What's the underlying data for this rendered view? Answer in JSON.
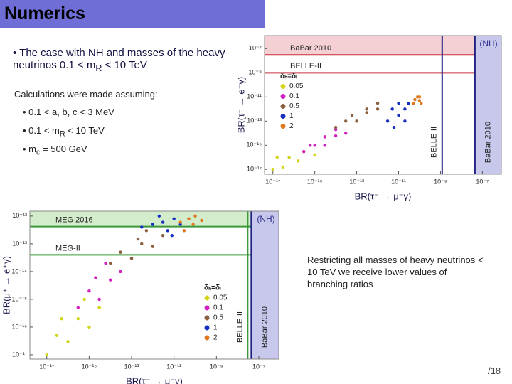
{
  "header": {
    "title": "Numerics"
  },
  "lead": [
    "The case with NH and masses of the heavy neutrinos 0.1 < m",
    "R",
    " < 10 TeV"
  ],
  "calc_title": "Calculations were made assuming:",
  "assumptions": [
    [
      "0.1 < a, b, c < 3 MeV"
    ],
    [
      "0.1 < m",
      "R",
      " < 10 TeV"
    ],
    [
      "m",
      "c",
      " = 500 GeV"
    ]
  ],
  "note": "Restricting all masses of heavy neutrinos < 10 TeV we receive lower values of branching ratios",
  "page": "/18",
  "chart_data": [
    {
      "type": "scatter",
      "xscale": "log",
      "yscale": "log",
      "x_label": "BR(τ⁻ → μ⁻γ)",
      "y_label": "BR(τ⁻ → e⁻γ)",
      "annotation": "(NH)",
      "legend_title": "δₕ=δₗ",
      "legend": "center-left",
      "xlim": [
        4e-18,
        8e-07
      ],
      "ylim": [
        4e-18,
        1.2e-06
      ],
      "xticks": [
        {
          "value": 1e-17,
          "label": "10⁻¹⁷"
        },
        {
          "value": 1e-15,
          "label": "10⁻¹⁵"
        },
        {
          "value": 1e-13,
          "label": "10⁻¹³"
        },
        {
          "value": 1e-11,
          "label": "10⁻¹¹"
        },
        {
          "value": 1e-09,
          "label": "10⁻⁹"
        },
        {
          "value": 1e-07,
          "label": "10⁻⁷"
        }
      ],
      "yticks": [
        {
          "value": 1e-17,
          "label": "10⁻¹⁷"
        },
        {
          "value": 1e-15,
          "label": "10⁻¹⁵"
        },
        {
          "value": 1e-13,
          "label": "10⁻¹³"
        },
        {
          "value": 1e-11,
          "label": "10⁻¹¹"
        },
        {
          "value": 1e-09,
          "label": "10⁻⁹"
        },
        {
          "value": 1e-07,
          "label": "10⁻⁷"
        }
      ],
      "limits": [
        {
          "label": "BaBar 2010",
          "axis": "y",
          "value": 3e-08,
          "color": "#c8303c",
          "band": true,
          "band_color": "#f4d0d4"
        },
        {
          "label": "BELLE-II",
          "axis": "y",
          "value": 1e-09,
          "color": "#c8303c",
          "band": false
        },
        {
          "label": "BELLE-II",
          "axis": "x",
          "value": 1.2e-09,
          "color": "#202080",
          "band": false
        },
        {
          "label": "BaBar 2010",
          "axis": "x",
          "value": 4.4e-08,
          "color": "#202080",
          "band": true,
          "band_color": "#c8c8ec"
        }
      ],
      "series": [
        {
          "name": "0.05",
          "color": "#d4d41a",
          "x": [
            1e-17,
            3e-17,
            6e-17,
            1.6e-16,
            3e-16,
            1e-15,
            1.6e-17,
            6e-16
          ],
          "values": [
            1e-17,
            1.6e-17,
            1e-16,
            5e-17,
            3e-16,
            1.6e-16,
            1e-16,
            1e-15
          ]
        },
        {
          "name": "0.1",
          "color": "#d020c0",
          "x": [
            3e-16,
            1e-15,
            3e-15,
            1e-14,
            3e-15,
            3e-14,
            6e-16,
            1e-14
          ],
          "values": [
            3e-16,
            1e-15,
            1e-15,
            6e-15,
            5e-15,
            1e-14,
            1e-15,
            2e-14
          ]
        },
        {
          "name": "0.5",
          "color": "#8a6040",
          "x": [
            1e-14,
            3e-14,
            1e-13,
            3e-13,
            1e-12,
            3e-13,
            6e-14,
            1e-12
          ],
          "values": [
            3e-14,
            1e-13,
            1e-13,
            5e-13,
            1e-12,
            1e-12,
            3e-13,
            3e-12
          ]
        },
        {
          "name": "1",
          "color": "#1830c0",
          "x": [
            3e-12,
            1e-11,
            2e-11,
            5e-12,
            1e-11,
            3e-11,
            2e-11,
            6e-12
          ],
          "values": [
            1e-13,
            3e-13,
            1e-12,
            1e-12,
            3e-12,
            3e-12,
            1e-13,
            3e-14
          ]
        },
        {
          "name": "2",
          "color": "#e07820",
          "x": [
            5e-11,
            1e-10,
            8e-11,
            1.2e-10,
            6e-11,
            1e-10
          ],
          "values": [
            3e-12,
            5e-12,
            1e-11,
            3e-12,
            6e-12,
            1e-11
          ]
        }
      ]
    },
    {
      "type": "scatter",
      "xscale": "log",
      "yscale": "log",
      "x_label": "BR(τ⁻ → μ⁻γ)",
      "y_label": "BR(μ⁺ → e⁺γ)",
      "annotation": "(NH)",
      "legend_title": "δₕ=δₗ",
      "legend": "lower-right",
      "xlim": [
        1.6e-18,
        8.7e-07
      ],
      "ylim": [
        7e-18,
        1.5e-12
      ],
      "xticks": [
        {
          "value": 1e-17,
          "label": "10⁻¹⁷"
        },
        {
          "value": 1e-15,
          "label": "10⁻¹⁵"
        },
        {
          "value": 1e-13,
          "label": "10⁻¹³"
        },
        {
          "value": 1e-11,
          "label": "10⁻¹¹"
        },
        {
          "value": 1e-09,
          "label": "10⁻⁹"
        },
        {
          "value": 1e-07,
          "label": "10⁻⁷"
        }
      ],
      "yticks": [
        {
          "value": 1e-12,
          "label": "10⁻¹²"
        },
        {
          "value": 1e-13,
          "label": "10⁻¹³"
        },
        {
          "value": 1e-14,
          "label": "10⁻¹⁴"
        },
        {
          "value": 1e-15,
          "label": "10⁻¹⁵"
        },
        {
          "value": 1e-16,
          "label": "10⁻¹⁶"
        },
        {
          "value": 1e-17,
          "label": "10⁻¹⁷"
        }
      ],
      "limits": [
        {
          "label": "MEG 2016",
          "axis": "y",
          "value": 4.2e-13,
          "color": "#3a9a3a",
          "band": true,
          "band_color": "#d2eccc"
        },
        {
          "label": "MEG-II",
          "axis": "y",
          "value": 4e-14,
          "color": "#3a9a3a",
          "band": false
        },
        {
          "label": "BELLE-II",
          "axis": "x",
          "value": 3e-08,
          "color": "#3a9a3a",
          "band": false
        },
        {
          "label": "BaBar 2010",
          "axis": "x",
          "value": 4.4e-08,
          "color": "#202080",
          "band": true,
          "band_color": "#c8c8ec"
        }
      ],
      "series": [
        {
          "name": "0.05",
          "color": "#d4d41a",
          "x": [
            1e-17,
            3e-17,
            1e-16,
            3e-16,
            1e-15,
            3e-15,
            5e-17,
            6e-16
          ],
          "values": [
            1e-17,
            5e-17,
            3e-17,
            2e-16,
            1e-16,
            5e-16,
            2e-16,
            1e-15
          ]
        },
        {
          "name": "0.1",
          "color": "#d020c0",
          "x": [
            3e-16,
            1e-15,
            3e-15,
            1e-14,
            3e-14,
            6e-15,
            1e-13,
            2e-15
          ],
          "values": [
            5e-16,
            2e-15,
            1e-15,
            5e-15,
            1e-14,
            2e-14,
            3e-14,
            6e-15
          ]
        },
        {
          "name": "0.5",
          "color": "#8a6040",
          "x": [
            1e-14,
            3e-14,
            1e-13,
            3e-13,
            1e-12,
            3e-12,
            5e-13,
            2e-13
          ],
          "values": [
            2e-14,
            5e-14,
            3e-14,
            1e-13,
            8e-14,
            2e-13,
            3e-13,
            1.5e-13
          ]
        },
        {
          "name": "1",
          "color": "#1830c0",
          "x": [
            3e-13,
            1e-12,
            3e-12,
            1e-11,
            5e-12,
            2e-11,
            8e-12,
            2e-12
          ],
          "values": [
            4e-13,
            5e-13,
            6e-13,
            8e-13,
            3e-13,
            5e-13,
            2e-13,
            1e-12
          ]
        },
        {
          "name": "2",
          "color": "#e07820",
          "x": [
            2e-11,
            5e-11,
            1e-10,
            3e-11,
            8e-11,
            2e-10
          ],
          "values": [
            6e-13,
            8e-13,
            1e-12,
            3e-13,
            5e-13,
            7e-13
          ]
        }
      ]
    }
  ]
}
